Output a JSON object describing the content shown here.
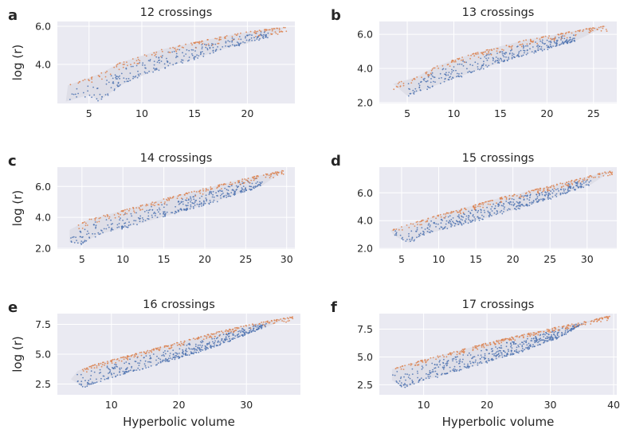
{
  "figure": {
    "colors": {
      "panel_background": "#eaeaf2",
      "grid": "#ffffff",
      "series_upper": "#dd8452",
      "series_lower": "#4c72b0",
      "interior_fill": "#d9d9e3"
    }
  },
  "chart_data": [
    {
      "type": "scatter",
      "panel_letter": "a",
      "title": "12 crossings",
      "xlabel": "",
      "ylabel": "log (r)",
      "xlim": [
        2,
        24.5
      ],
      "ylim": [
        1.95,
        6.25
      ],
      "xticks": [
        5,
        10,
        15,
        20
      ],
      "yticks": [
        4.0,
        6.0
      ],
      "ytick_labels": [
        "4.0",
        "6.0"
      ],
      "grid": true,
      "series": [
        {
          "color": "#dd8452",
          "role": "upper",
          "x": [
            3,
            6,
            8,
            10,
            12,
            15,
            18,
            20,
            22,
            23.7
          ],
          "y": [
            2.9,
            3.5,
            4.1,
            4.45,
            4.8,
            5.15,
            5.5,
            5.7,
            5.85,
            5.95
          ]
        },
        {
          "color": "#4c72b0",
          "role": "lower",
          "x": [
            2.8,
            5,
            6,
            8,
            10,
            12,
            15,
            18,
            20,
            22
          ],
          "y": [
            2.05,
            2.4,
            2.1,
            2.9,
            3.4,
            3.8,
            4.3,
            4.85,
            5.1,
            5.45
          ]
        }
      ]
    },
    {
      "type": "scatter",
      "panel_letter": "b",
      "title": "13 crossings",
      "xlabel": "",
      "ylabel": "",
      "xlim": [
        2,
        27.5
      ],
      "ylim": [
        1.95,
        6.75
      ],
      "xticks": [
        5,
        10,
        15,
        20,
        25
      ],
      "yticks": [
        2.0,
        4.0,
        6.0
      ],
      "ytick_labels": [
        "2.0",
        "4.0",
        "6.0"
      ],
      "grid": true,
      "series": [
        {
          "color": "#dd8452",
          "role": "upper",
          "x": [
            3.5,
            6,
            8,
            10,
            12,
            15,
            18,
            21,
            24,
            26.5
          ],
          "y": [
            3.1,
            3.5,
            4.1,
            4.5,
            4.85,
            5.3,
            5.7,
            6.0,
            6.3,
            6.5
          ]
        },
        {
          "color": "#4c72b0",
          "role": "lower",
          "x": [
            5,
            6,
            8,
            10,
            12,
            15,
            18,
            21,
            23
          ],
          "y": [
            2.4,
            2.6,
            3.0,
            3.4,
            3.8,
            4.35,
            4.85,
            5.3,
            5.6
          ]
        }
      ]
    },
    {
      "type": "scatter",
      "panel_letter": "c",
      "title": "14 crossings",
      "xlabel": "",
      "ylabel": "log (r)",
      "xlim": [
        2,
        31
      ],
      "ylim": [
        1.95,
        7.25
      ],
      "xticks": [
        5,
        10,
        15,
        20,
        25,
        30
      ],
      "yticks": [
        2.0,
        4.0,
        6.0
      ],
      "ytick_labels": [
        "2.0",
        "4.0",
        "6.0"
      ],
      "grid": true,
      "series": [
        {
          "color": "#dd8452",
          "role": "upper",
          "x": [
            3.5,
            6,
            9,
            12,
            15,
            18,
            21,
            24,
            27,
            29.7
          ],
          "y": [
            3.2,
            3.9,
            4.3,
            4.75,
            5.2,
            5.6,
            6.0,
            6.4,
            6.75,
            7.05
          ]
        },
        {
          "color": "#4c72b0",
          "role": "lower",
          "x": [
            3.5,
            5,
            7,
            10,
            13,
            16,
            19,
            22,
            25,
            27
          ],
          "y": [
            2.4,
            2.3,
            2.9,
            3.3,
            3.75,
            4.2,
            4.65,
            5.15,
            5.7,
            6.05
          ]
        }
      ]
    },
    {
      "type": "scatter",
      "panel_letter": "d",
      "title": "15 crossings",
      "xlabel": "",
      "ylabel": "",
      "xlim": [
        2,
        34
      ],
      "ylim": [
        1.95,
        7.85
      ],
      "xticks": [
        5,
        10,
        15,
        20,
        25,
        30
      ],
      "yticks": [
        2.0,
        4.0,
        6.0
      ],
      "ytick_labels": [
        "2.0",
        "4.0",
        "6.0"
      ],
      "grid": true,
      "series": [
        {
          "color": "#dd8452",
          "role": "upper",
          "x": [
            3.5,
            7,
            10,
            13,
            16,
            19,
            22,
            25,
            28,
            31,
            33.5
          ],
          "y": [
            3.3,
            3.9,
            4.4,
            4.85,
            5.3,
            5.75,
            6.1,
            6.5,
            6.9,
            7.3,
            7.65
          ]
        },
        {
          "color": "#4c72b0",
          "role": "lower",
          "x": [
            4,
            6,
            8,
            11,
            14,
            17,
            20,
            23,
            26,
            29,
            30.5
          ],
          "y": [
            2.9,
            2.4,
            3.0,
            3.4,
            3.85,
            4.3,
            4.75,
            5.25,
            5.75,
            6.35,
            6.6
          ]
        }
      ]
    },
    {
      "type": "scatter",
      "panel_letter": "e",
      "title": "16 crossings",
      "xlabel": "Hyperbolic volume",
      "ylabel": "log (r)",
      "xlim": [
        2,
        38
      ],
      "ylim": [
        1.6,
        8.4
      ],
      "xticks": [
        10,
        20,
        30
      ],
      "yticks": [
        2.5,
        5.0,
        7.5
      ],
      "ytick_labels": [
        "2.5",
        "5.0",
        "7.5"
      ],
      "grid": true,
      "series": [
        {
          "color": "#dd8452",
          "role": "upper",
          "x": [
            5,
            8,
            11,
            14,
            17,
            20,
            23,
            26,
            29,
            32,
            35,
            37
          ],
          "y": [
            3.6,
            4.2,
            4.65,
            5.1,
            5.55,
            6.0,
            6.45,
            6.9,
            7.3,
            7.65,
            7.95,
            8.15
          ]
        },
        {
          "color": "#4c72b0",
          "role": "lower",
          "x": [
            4,
            6,
            9,
            12,
            15,
            18,
            21,
            24,
            27,
            30,
            33
          ],
          "y": [
            2.9,
            2.2,
            2.9,
            3.35,
            3.85,
            4.35,
            4.85,
            5.4,
            6.0,
            6.65,
            7.3
          ]
        }
      ]
    },
    {
      "type": "scatter",
      "panel_letter": "f",
      "title": "17 crossings",
      "xlabel": "Hyperbolic volume",
      "ylabel": "",
      "xlim": [
        3,
        40.5
      ],
      "ylim": [
        1.6,
        8.9
      ],
      "xticks": [
        10,
        20,
        30,
        40
      ],
      "yticks": [
        2.5,
        5.0,
        7.5
      ],
      "ytick_labels": [
        "2.5",
        "5.0",
        "7.5"
      ],
      "grid": true,
      "series": [
        {
          "color": "#dd8452",
          "role": "upper",
          "x": [
            5,
            8,
            11,
            14,
            17,
            20,
            24,
            28,
            32,
            36,
            39.5
          ],
          "y": [
            3.9,
            4.4,
            4.9,
            5.35,
            5.8,
            6.25,
            6.8,
            7.3,
            7.8,
            8.25,
            8.7
          ]
        },
        {
          "color": "#4c72b0",
          "role": "lower",
          "x": [
            5,
            7,
            10,
            13,
            16,
            19,
            22,
            25,
            28,
            31,
            35
          ],
          "y": [
            2.9,
            2.2,
            2.9,
            3.35,
            3.85,
            4.35,
            4.85,
            5.4,
            6.0,
            6.65,
            7.9
          ]
        }
      ]
    }
  ]
}
